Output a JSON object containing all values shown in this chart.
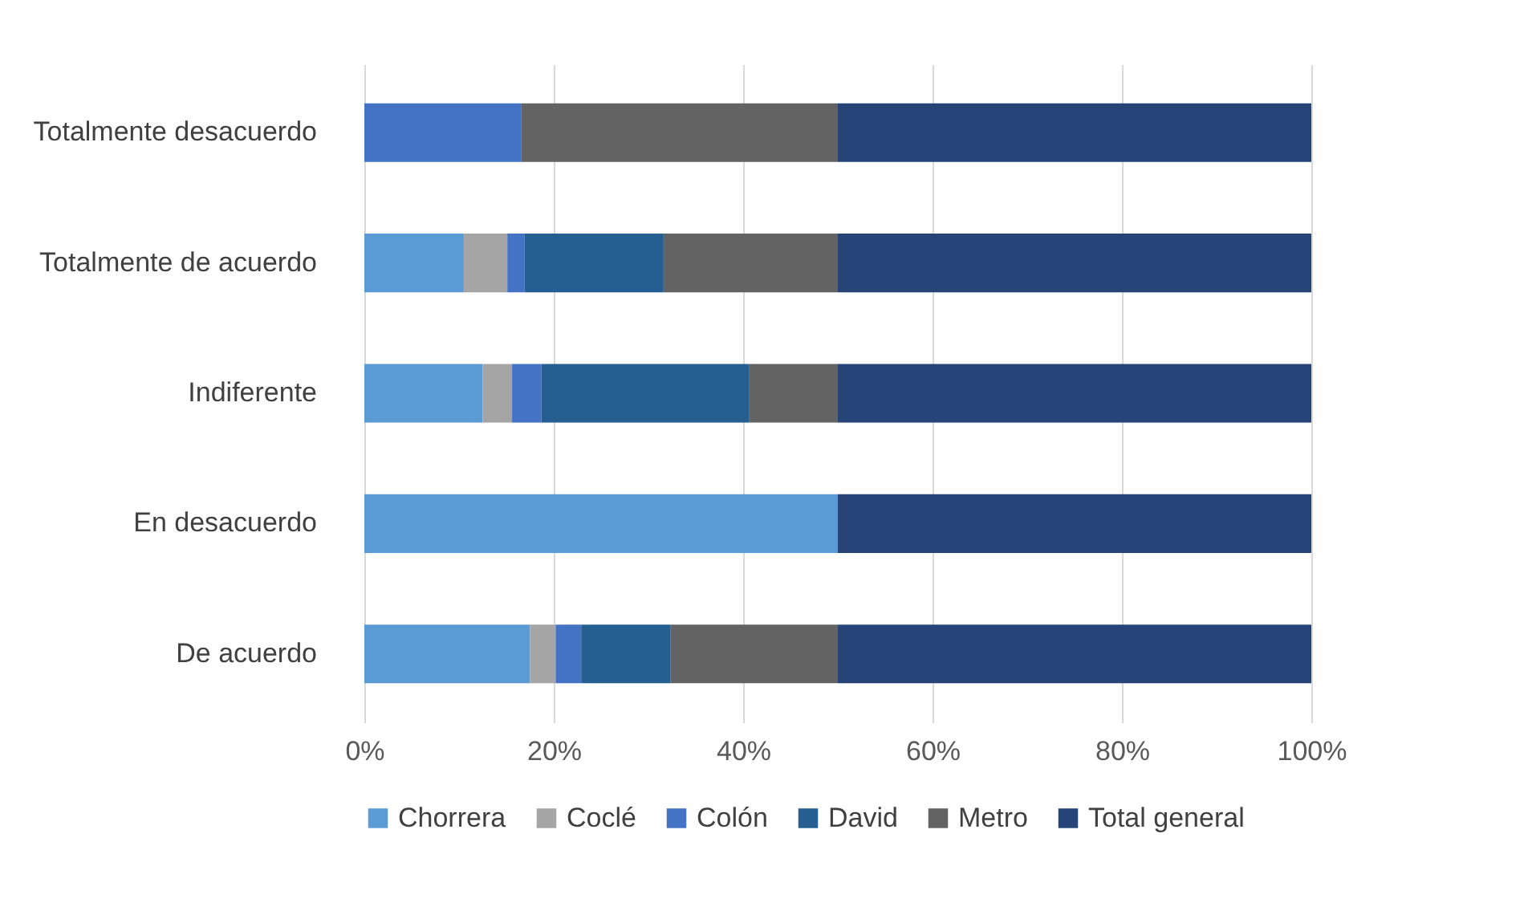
{
  "chart_data": {
    "type": "bar",
    "orientation": "horizontal",
    "stacked": true,
    "categories": [
      "Totalmente desacuerdo",
      "Totalmente de acuerdo",
      "Indiferente",
      "En desacuerdo",
      "De acuerdo"
    ],
    "series": [
      {
        "name": "Chorrera",
        "color": "#5b9bd5",
        "values": [
          null,
          10.5,
          12.5,
          50,
          17.5
        ]
      },
      {
        "name": "Coclé",
        "color": "#a5a5a5",
        "values": [
          null,
          4.6,
          3.1,
          null,
          2.7
        ]
      },
      {
        "name": "Colón",
        "color": "#4472c4",
        "values": [
          16.6,
          1.8,
          3.1,
          null,
          2.7
        ]
      },
      {
        "name": "David",
        "color": "#255e91",
        "values": [
          null,
          14.7,
          21.9,
          null,
          9.4
        ]
      },
      {
        "name": "Metro",
        "color": "#636363",
        "values": [
          33.4,
          18.4,
          9.4,
          null,
          17.7
        ]
      },
      {
        "name": "Total general",
        "color": "#264478",
        "values": [
          50,
          50,
          50,
          50,
          50
        ]
      }
    ],
    "xlim": [
      0,
      100
    ],
    "xticks": [
      {
        "value": 0,
        "label": "0%"
      },
      {
        "value": 20,
        "label": "20%"
      },
      {
        "value": 40,
        "label": "40%"
      },
      {
        "value": 60,
        "label": "60%"
      },
      {
        "value": 80,
        "label": "80%"
      },
      {
        "value": 100,
        "label": "100%"
      }
    ],
    "grid": "x",
    "legend": "bottom"
  }
}
